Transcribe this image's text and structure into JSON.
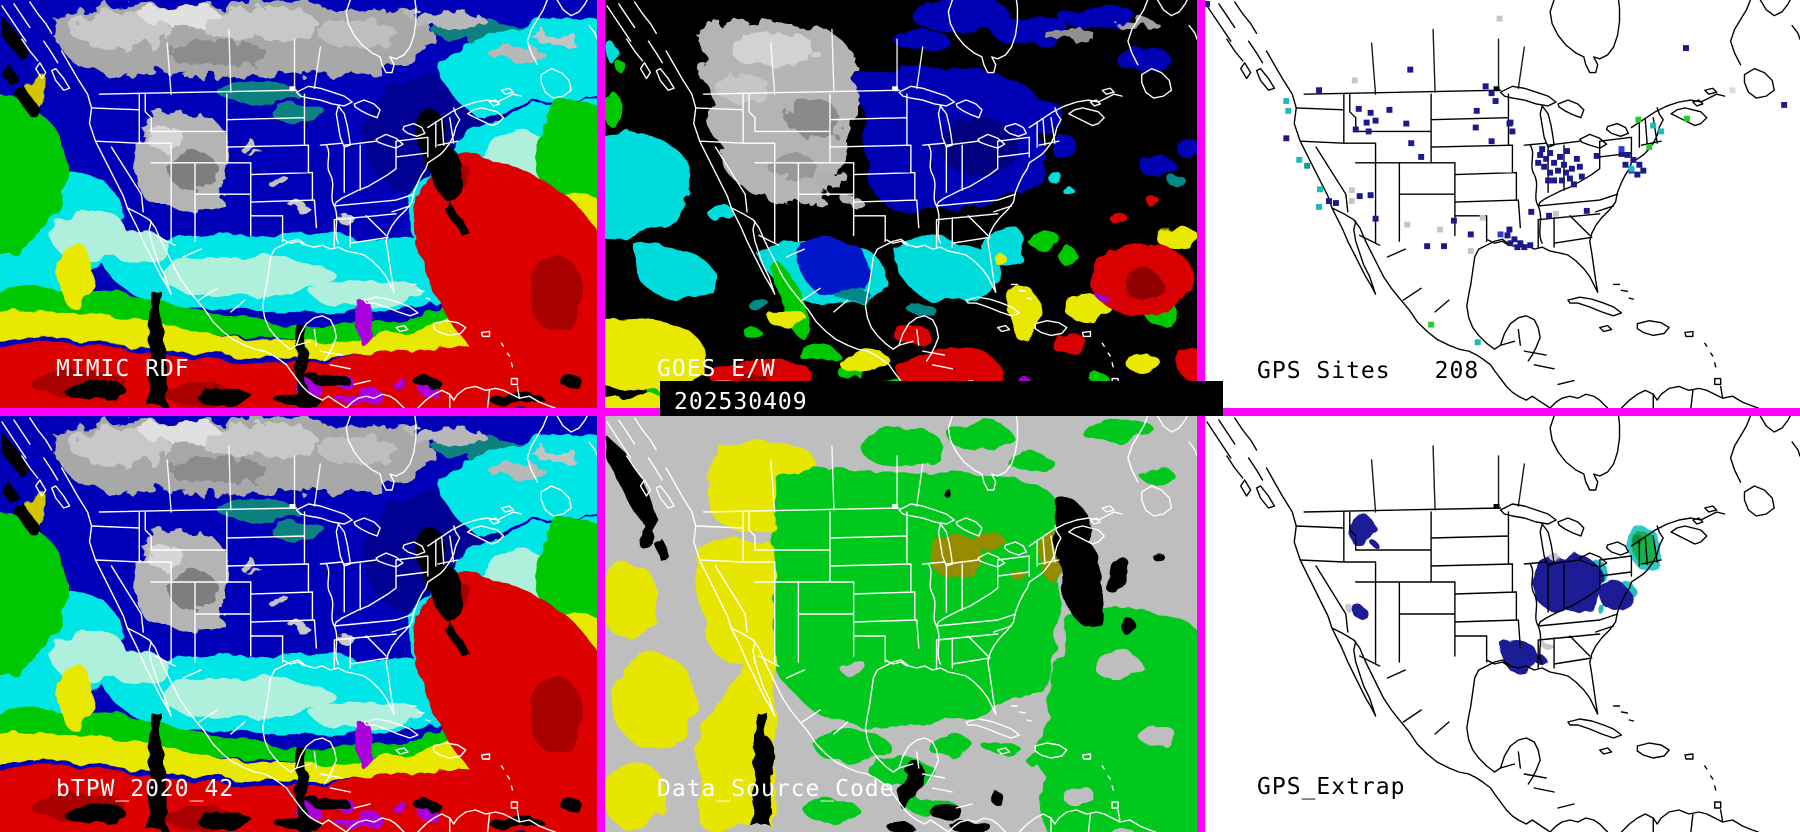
{
  "border_color": "#FF00FF",
  "timestamp": "202530409",
  "panels": {
    "mimic": {
      "title": "MIMIC RDF"
    },
    "goes": {
      "title": "GOES_E/W"
    },
    "gps_sites": {
      "title": "GPS Sites",
      "count": "208"
    },
    "btpw": {
      "title": "bTPW_2020_42"
    },
    "dsc": {
      "title": "Data_Source_Code"
    },
    "extrap": {
      "title": "GPS_Extrap"
    }
  },
  "gps": {
    "dot_colors": {
      "n": "#1A1A8C",
      "b": "#2B3FD8",
      "c": "#18BCBC",
      "t": "#0E9898",
      "g": "#C6C6C6",
      "e": "#2ACC2A",
      "l": "#DCDCDC"
    },
    "dots": [
      [
        2,
        4,
        "n"
      ],
      [
        297,
        19,
        "g"
      ],
      [
        485,
        49,
        "n"
      ],
      [
        207,
        71,
        "n"
      ],
      [
        151,
        82,
        "g"
      ],
      [
        115,
        92,
        "n"
      ],
      [
        283,
        88,
        "n"
      ],
      [
        289,
        95,
        "n"
      ],
      [
        293,
        103,
        "n"
      ],
      [
        274,
        113,
        "n"
      ],
      [
        308,
        125,
        "n"
      ],
      [
        82,
        103,
        "c"
      ],
      [
        84,
        113,
        "c"
      ],
      [
        155,
        111,
        "n"
      ],
      [
        167,
        115,
        "n"
      ],
      [
        163,
        125,
        "n"
      ],
      [
        172,
        123,
        "n"
      ],
      [
        186,
        112,
        "n"
      ],
      [
        152,
        132,
        "n"
      ],
      [
        165,
        134,
        "n"
      ],
      [
        203,
        126,
        "n"
      ],
      [
        208,
        146,
        "n"
      ],
      [
        218,
        160,
        "n"
      ],
      [
        82,
        141,
        "n"
      ],
      [
        95,
        163,
        "c"
      ],
      [
        103,
        169,
        "t"
      ],
      [
        116,
        193,
        "c"
      ],
      [
        125,
        205,
        "n"
      ],
      [
        132,
        207,
        "n"
      ],
      [
        115,
        211,
        "c"
      ],
      [
        148,
        205,
        "g"
      ],
      [
        156,
        200,
        "n"
      ],
      [
        167,
        199,
        "n"
      ],
      [
        172,
        223,
        "n"
      ],
      [
        148,
        194,
        "g"
      ],
      [
        204,
        229,
        "g"
      ],
      [
        237,
        234,
        "g"
      ],
      [
        251,
        225,
        "n"
      ],
      [
        268,
        239,
        "n"
      ],
      [
        280,
        222,
        "g"
      ],
      [
        298,
        239,
        "b"
      ],
      [
        307,
        234,
        "n"
      ],
      [
        268,
        256,
        "g"
      ],
      [
        224,
        251,
        "n"
      ],
      [
        241,
        251,
        "n"
      ],
      [
        289,
        144,
        "n"
      ],
      [
        273,
        130,
        "n"
      ],
      [
        307,
        126,
        "n"
      ],
      [
        310,
        134,
        "n"
      ],
      [
        338,
        158,
        "n"
      ],
      [
        336,
        166,
        "n"
      ],
      [
        340,
        152,
        "n"
      ],
      [
        348,
        156,
        "n"
      ],
      [
        344,
        162,
        "n"
      ],
      [
        352,
        166,
        "n"
      ],
      [
        358,
        160,
        "n"
      ],
      [
        362,
        168,
        "n"
      ],
      [
        356,
        174,
        "n"
      ],
      [
        348,
        176,
        "n"
      ],
      [
        342,
        170,
        "n"
      ],
      [
        364,
        176,
        "n"
      ],
      [
        370,
        172,
        "n"
      ],
      [
        368,
        182,
        "n"
      ],
      [
        360,
        184,
        "n"
      ],
      [
        352,
        184,
        "n"
      ],
      [
        346,
        184,
        "n"
      ],
      [
        372,
        188,
        "n"
      ],
      [
        365,
        154,
        "n"
      ],
      [
        375,
        162,
        "n"
      ],
      [
        378,
        170,
        "n"
      ],
      [
        380,
        180,
        "n"
      ],
      [
        329,
        216,
        "n"
      ],
      [
        347,
        220,
        "n"
      ],
      [
        354,
        218,
        "g"
      ],
      [
        385,
        215,
        "n"
      ],
      [
        395,
        159,
        "n"
      ],
      [
        420,
        157,
        "n"
      ],
      [
        305,
        240,
        "n"
      ],
      [
        312,
        244,
        "n"
      ],
      [
        318,
        248,
        "n"
      ],
      [
        322,
        252,
        "n"
      ],
      [
        328,
        250,
        "n"
      ],
      [
        315,
        252,
        "n"
      ],
      [
        308,
        248,
        "n"
      ],
      [
        420,
        152,
        "b"
      ],
      [
        426,
        158,
        "n"
      ],
      [
        432,
        163,
        "n"
      ],
      [
        438,
        168,
        "n"
      ],
      [
        424,
        168,
        "n"
      ],
      [
        430,
        174,
        "b"
      ],
      [
        436,
        178,
        "n"
      ],
      [
        442,
        174,
        "n"
      ],
      [
        430,
        172,
        "c"
      ],
      [
        452,
        128,
        "c"
      ],
      [
        460,
        134,
        "c"
      ],
      [
        437,
        122,
        "e"
      ],
      [
        448,
        150,
        "e"
      ],
      [
        486,
        121,
        "e"
      ],
      [
        584,
        107,
        "n"
      ],
      [
        228,
        331,
        "e"
      ],
      [
        275,
        349,
        "c"
      ],
      [
        532,
        92,
        "l"
      ]
    ]
  }
}
